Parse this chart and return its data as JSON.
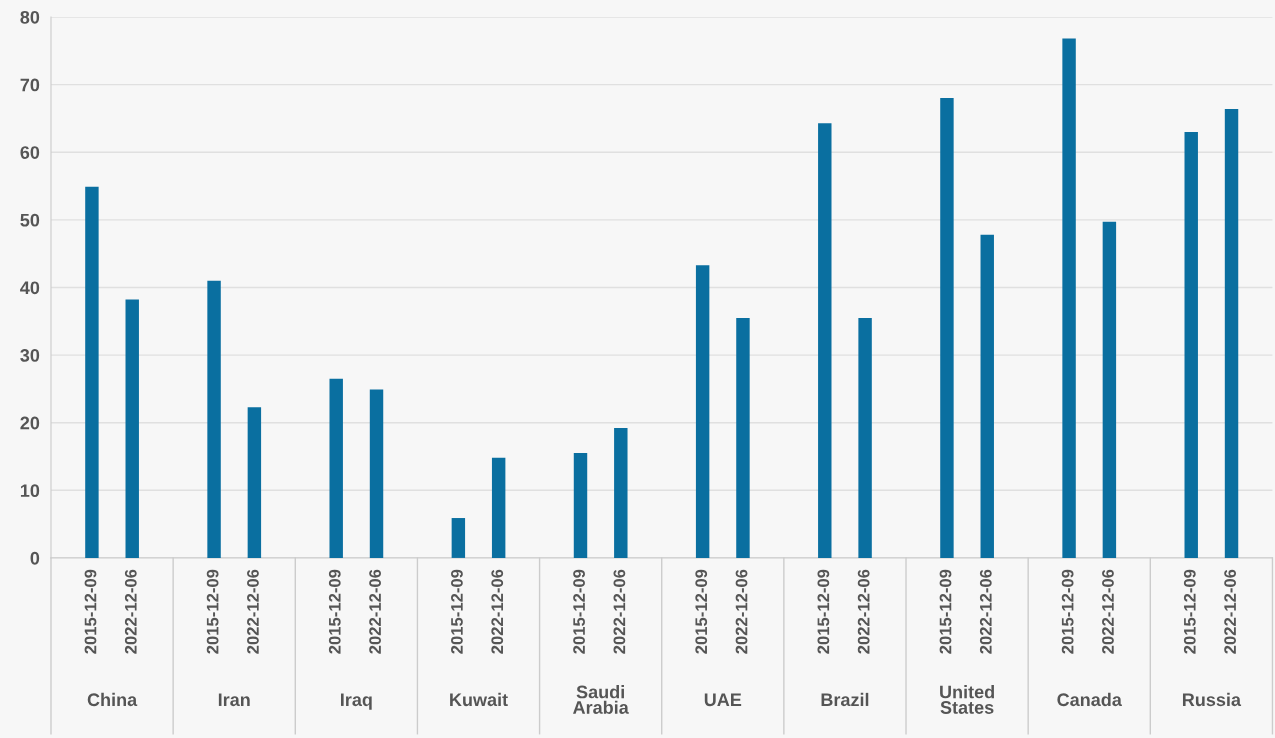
{
  "chart_data": {
    "type": "bar",
    "categories": [
      "China",
      "Iran",
      "Iraq",
      "Kuwait",
      "Saudi Arabia",
      "UAE",
      "Brazil",
      "United States",
      "Canada",
      "Russia"
    ],
    "series": [
      {
        "name": "2015-12-09",
        "color": "#0a6fa0",
        "values": [
          54.9,
          41.0,
          26.5,
          5.9,
          15.5,
          43.3,
          64.3,
          68.0,
          76.8,
          63.0
        ]
      },
      {
        "name": "2022-12-06",
        "color": "#0a6fa0",
        "values": [
          38.2,
          22.3,
          24.9,
          14.8,
          19.2,
          35.5,
          35.5,
          47.8,
          49.7,
          66.4
        ]
      }
    ],
    "ylim": [
      0,
      80
    ],
    "yticks": [
      0,
      10,
      20,
      30,
      40,
      50,
      60,
      70,
      80
    ],
    "grid": "y"
  }
}
